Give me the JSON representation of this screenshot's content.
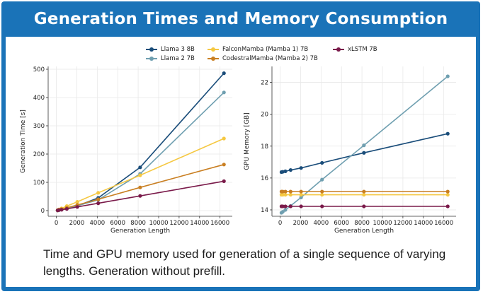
{
  "header": {
    "title": "Generation Times and Memory Consumption"
  },
  "caption": "Time and GPU memory used for generation of a single sequence of varying lengths. Generation without prefill.",
  "legend": [
    {
      "name": "Llama 3 8B",
      "color": "#1a4d7a"
    },
    {
      "name": "Llama 2 7B",
      "color": "#6f9fb0"
    },
    {
      "name": "FalconMamba (Mamba 1) 7B",
      "color": "#f5c842"
    },
    {
      "name": "CodestralMamba (Mamba 2) 7B",
      "color": "#c97f22"
    },
    {
      "name": "xLSTM 7B",
      "color": "#7a1a4a"
    }
  ],
  "chart_data": [
    {
      "type": "line",
      "xlabel": "Generation Length",
      "ylabel": "Generation Time [s]",
      "xlim": [
        -800,
        17200
      ],
      "ylim": [
        -20,
        510
      ],
      "xticks": [
        0,
        2000,
        4000,
        6000,
        8000,
        10000,
        12000,
        14000,
        16000
      ],
      "yticks": [
        0,
        100,
        200,
        300,
        400,
        500
      ],
      "grid": true,
      "x": [
        128,
        256,
        512,
        1024,
        2048,
        4096,
        8192,
        16384
      ],
      "series": [
        {
          "name": "Llama 3 8B",
          "color": "#1a4d7a",
          "values": [
            1,
            2,
            4,
            8,
            17,
            45,
            153,
            486
          ]
        },
        {
          "name": "Llama 2 7B",
          "color": "#6f9fb0",
          "values": [
            1,
            2,
            4,
            8,
            17,
            38,
            130,
            418
          ]
        },
        {
          "name": "FalconMamba (Mamba 1) 7B",
          "color": "#f5c842",
          "values": [
            2,
            4,
            8,
            16,
            31,
            63,
            125,
            255
          ]
        },
        {
          "name": "CodestralMamba (Mamba 2) 7B",
          "color": "#c97f22",
          "values": [
            1,
            3,
            5,
            10,
            20,
            40,
            82,
            163
          ]
        },
        {
          "name": "xLSTM 7B",
          "color": "#7a1a4a",
          "values": [
            1,
            2,
            3,
            6,
            13,
            26,
            52,
            104
          ]
        }
      ]
    },
    {
      "type": "line",
      "xlabel": "Generation Length",
      "ylabel": "GPU Memory [GB]",
      "xlim": [
        -800,
        17200
      ],
      "ylim": [
        13.6,
        23.0
      ],
      "xticks": [
        0,
        2000,
        4000,
        6000,
        8000,
        10000,
        12000,
        14000,
        16000
      ],
      "yticks": [
        14,
        16,
        18,
        20,
        22
      ],
      "grid": true,
      "x": [
        128,
        256,
        512,
        1024,
        2048,
        4096,
        8192,
        16384
      ],
      "series": [
        {
          "name": "Llama 3 8B",
          "color": "#1a4d7a",
          "values": [
            16.37,
            16.39,
            16.42,
            16.5,
            16.63,
            16.95,
            17.58,
            18.78
          ]
        },
        {
          "name": "Llama 2 7B",
          "color": "#6f9fb0",
          "values": [
            13.82,
            13.88,
            14.0,
            14.25,
            14.78,
            15.9,
            18.05,
            22.38
          ]
        },
        {
          "name": "FalconMamba (Mamba 1) 7B",
          "color": "#f5c842",
          "values": [
            14.95,
            14.95,
            14.95,
            14.95,
            14.95,
            14.95,
            14.95,
            14.95
          ]
        },
        {
          "name": "CodestralMamba (Mamba 2) 7B",
          "color": "#c97f22",
          "values": [
            15.15,
            15.15,
            15.15,
            15.15,
            15.15,
            15.15,
            15.15,
            15.15
          ]
        },
        {
          "name": "xLSTM 7B",
          "color": "#7a1a4a",
          "values": [
            14.22,
            14.22,
            14.22,
            14.22,
            14.22,
            14.22,
            14.22,
            14.22
          ]
        }
      ]
    }
  ]
}
